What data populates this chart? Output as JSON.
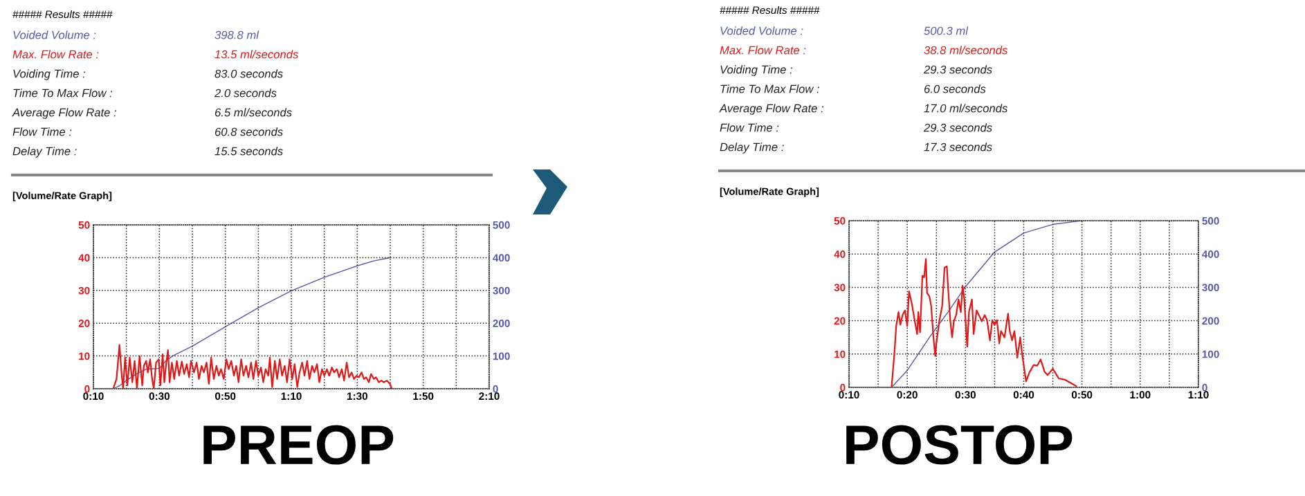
{
  "chart_data": [
    {
      "type": "line",
      "title": "[Volume/Rate Graph]",
      "subtitle": "PREOP",
      "annotations": [
        "##### Results #####",
        "Voided Volume :",
        "398.8 ml",
        "Max. Flow Rate :",
        "13.5 ml/seconds",
        "Voiding Time :",
        "83.0 seconds",
        "Time To Max Flow :",
        "2.0 seconds",
        "Average Flow Rate :",
        "6.5 ml/seconds",
        "Flow Time :",
        "60.8 seconds",
        "Delay Time :",
        "15.5 seconds"
      ],
      "xlim": [
        10,
        130
      ],
      "xticks": [
        {
          "value": 10,
          "label": "0:10"
        },
        {
          "value": 20,
          "label": null
        },
        {
          "value": 30,
          "label": "0:30"
        },
        {
          "value": 40,
          "label": null
        },
        {
          "value": 50,
          "label": "0:50"
        },
        {
          "value": 60,
          "label": null
        },
        {
          "value": 70,
          "label": "1:10"
        },
        {
          "value": 80,
          "label": null
        },
        {
          "value": 90,
          "label": "1:30"
        },
        {
          "value": 100,
          "label": null
        },
        {
          "value": 110,
          "label": "1:50"
        },
        {
          "value": 120,
          "label": null
        },
        {
          "value": 130,
          "label": "2:10"
        }
      ],
      "ylim": [
        0,
        50
      ],
      "yticks": [
        0,
        10,
        20,
        30,
        40,
        50
      ],
      "y2lim": [
        0,
        500
      ],
      "y2ticks": [
        0,
        100,
        200,
        300,
        400,
        500
      ],
      "grid": true,
      "series": [
        {
          "color": "#e01818",
          "x": [
            10,
            16,
            17,
            17.9,
            18.6,
            19,
            19.6,
            20.3,
            21,
            21.8,
            22.5,
            23.2,
            24,
            24.8,
            25.3,
            26,
            26.5,
            27.2,
            27.8,
            28.3,
            29,
            29.8,
            30.3,
            31,
            31.5,
            32,
            32.6,
            33.1,
            33.8,
            34.5,
            35.3,
            36,
            36.8,
            37.5,
            38.3,
            39,
            39.6,
            40.5,
            41.3,
            42,
            42.8,
            43.5,
            44.3,
            45,
            45.7,
            46.5,
            47.3,
            48,
            48.7,
            49.5,
            50.3,
            51,
            51.8,
            52.6,
            53.3,
            54,
            54.8,
            55.5,
            56.3,
            57,
            57.8,
            58.5,
            59.3,
            60,
            60.8,
            61.5,
            62.2,
            63,
            63.5,
            64.2,
            65,
            65.7,
            66.5,
            67.2,
            68,
            68.7,
            69.5,
            70.3,
            71,
            71.8,
            72.5,
            73.3,
            74,
            74.8,
            75.5,
            76.3,
            77,
            77.8,
            78.5,
            79.3,
            80,
            80.8,
            81.5,
            82.3,
            83,
            83.8,
            84.5,
            85.3,
            86,
            86.8,
            87.5,
            88.3,
            89,
            89.8,
            90.5,
            91.3,
            92,
            92.7,
            93.5,
            94.2,
            95,
            95.7,
            96.5,
            97.3,
            98,
            99,
            99.9,
            100.5,
            102
          ],
          "values": [
            0,
            0,
            3,
            13.4,
            4,
            0,
            9.5,
            1,
            9.5,
            2,
            8.5,
            0,
            10,
            1,
            7,
            8.5,
            5,
            9,
            3,
            0,
            8,
            9,
            1,
            10.5,
            2,
            7,
            11.8,
            2,
            8,
            3,
            8.5,
            4,
            8.3,
            4.5,
            7.5,
            3.5,
            8.5,
            5,
            8,
            3,
            7,
            5,
            8,
            1.5,
            9.5,
            3,
            7,
            4,
            6,
            3,
            9,
            6,
            8.5,
            4,
            7,
            2,
            9,
            4,
            7,
            3.5,
            8,
            3,
            8.5,
            4,
            6.5,
            2,
            6,
            4,
            9.5,
            0.5,
            8.5,
            3,
            9,
            4,
            7,
            2,
            9,
            3,
            7.5,
            0.5,
            5,
            8,
            4,
            8.5,
            3,
            7,
            5,
            7.5,
            2,
            6,
            4,
            6,
            4,
            6.5,
            5,
            6,
            3.5,
            6,
            2.5,
            8,
            3.5,
            5,
            3,
            4,
            3.5,
            5,
            3,
            3.5,
            2,
            4.5,
            3,
            3.5,
            2,
            2.5,
            2,
            2.5,
            1.5,
            0,
            0
          ]
        },
        {
          "color": "#5858a8",
          "axis": "y2",
          "x": [
            16,
            18,
            20,
            23,
            26,
            30,
            32,
            34,
            40,
            50,
            60,
            70,
            80,
            90,
            95,
            100
          ],
          "values": [
            0,
            10,
            25,
            45,
            60,
            62,
            85,
            100,
            130,
            189,
            247,
            299,
            340,
            375,
            390,
            400
          ]
        }
      ]
    },
    {
      "type": "line",
      "title": "[Volume/Rate Graph]",
      "subtitle": "POSTOP",
      "annotations": [
        "##### Results #####",
        "Voided Volume :",
        "500.3 ml",
        "Max. Flow Rate :",
        "38.8 ml/seconds",
        "Voiding Time :",
        "29.3 seconds",
        "Time To Max Flow :",
        "6.0 seconds",
        "Average Flow Rate :",
        "17.0 ml/seconds",
        "Flow Time :",
        "29.3 seconds",
        "Delay Time :",
        "17.3 seconds"
      ],
      "xlim": [
        10,
        70
      ],
      "xticks": [
        {
          "value": 10,
          "label": "0:10"
        },
        {
          "value": 15,
          "label": null
        },
        {
          "value": 20,
          "label": "0:20"
        },
        {
          "value": 25,
          "label": null
        },
        {
          "value": 30,
          "label": "0:30"
        },
        {
          "value": 35,
          "label": null
        },
        {
          "value": 40,
          "label": "0:40"
        },
        {
          "value": 45,
          "label": null
        },
        {
          "value": 50,
          "label": "0:50"
        },
        {
          "value": 55,
          "label": null
        },
        {
          "value": 60,
          "label": "1:00"
        },
        {
          "value": 65,
          "label": null
        },
        {
          "value": 70,
          "label": "1:10"
        }
      ],
      "ylim": [
        0,
        50
      ],
      "yticks": [
        0,
        10,
        20,
        30,
        40,
        50
      ],
      "y2lim": [
        0,
        500
      ],
      "y2ticks": [
        0,
        100,
        200,
        300,
        400,
        500
      ],
      "grid": true,
      "series": [
        {
          "color": "#e01818",
          "x": [
            10,
            17.3,
            17.8,
            18.1,
            18.5,
            18.8,
            19.2,
            19.6,
            20,
            20.3,
            20.8,
            21.3,
            21.7,
            21.9,
            22.2,
            22.6,
            22.9,
            23.2,
            23.4,
            23.8,
            24.1,
            24.5,
            24.8,
            25,
            25.5,
            26,
            26.4,
            26.8,
            27,
            27.4,
            27.7,
            28,
            28.4,
            28.8,
            29.2,
            29.5,
            29.8,
            30.1,
            30.3,
            30.6,
            31.1,
            31.4,
            31.9,
            32.3,
            32.8,
            33.3,
            33.7,
            34.2,
            34.6,
            35,
            35.4,
            35.8,
            36.1,
            36.7,
            37.3,
            37.6,
            38,
            38.4,
            38.9,
            39.4,
            39.7,
            40.4,
            41,
            41.7,
            42.3,
            42.9,
            43.6,
            44.1,
            45,
            46,
            47.1,
            48.1,
            49
          ],
          "values": [
            0,
            0,
            10.3,
            18.4,
            22.6,
            18.8,
            21.7,
            23.1,
            18.4,
            28.8,
            25,
            19.8,
            16,
            22.6,
            16.5,
            33.5,
            33,
            38.5,
            28.3,
            27.3,
            24.5,
            15,
            9.4,
            13.2,
            19.8,
            24.5,
            35.9,
            36.3,
            30.2,
            19.8,
            15,
            19.8,
            21.7,
            26.4,
            22.6,
            30.5,
            26.4,
            17.4,
            12.2,
            22.6,
            26.4,
            16,
            23.1,
            21.7,
            19.8,
            21.7,
            20.2,
            14.1,
            20.2,
            18.8,
            20.2,
            13.2,
            16.9,
            15,
            22.1,
            16.9,
            14.1,
            16.9,
            8.9,
            15,
            10.3,
            1.8,
            4.6,
            6.7,
            6.5,
            8.4,
            4.6,
            3.7,
            5.6,
            2.7,
            2.3,
            1.3,
            0.4
          ]
        },
        {
          "color": "#5858a8",
          "axis": "y2",
          "x": [
            17.3,
            20,
            24,
            27,
            30,
            35,
            40,
            45,
            50
          ],
          "values": [
            0,
            51,
            155,
            226,
            302,
            406,
            463,
            489,
            500
          ]
        }
      ]
    }
  ]
}
